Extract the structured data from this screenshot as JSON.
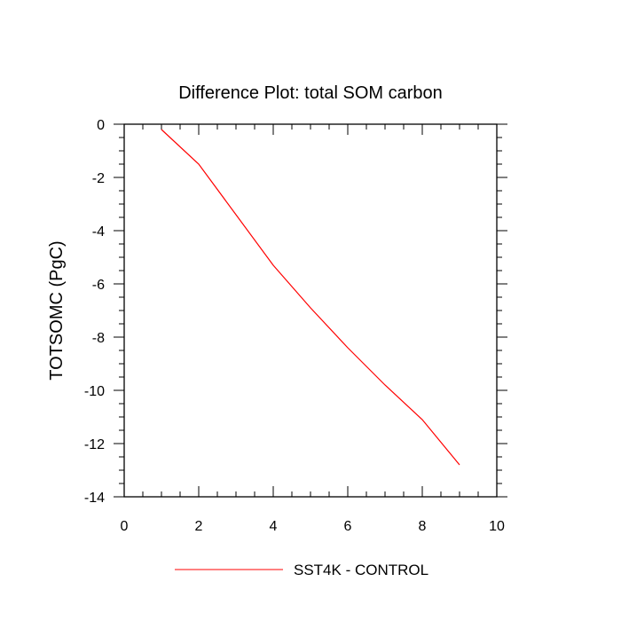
{
  "chart_data": {
    "type": "line",
    "title": "Difference Plot: total SOM carbon",
    "xlabel": "",
    "ylabel": "TOTSOMC  (PgC)",
    "xlim": [
      0,
      10
    ],
    "ylim": [
      -14,
      0
    ],
    "x_ticks": [
      0,
      2,
      4,
      6,
      8,
      10
    ],
    "y_ticks": [
      0,
      -2,
      -4,
      -6,
      -8,
      -10,
      -12,
      -14
    ],
    "grid": false,
    "legend_position": "bottom",
    "series": [
      {
        "name": "SST4K - CONTROL",
        "color": "#ff0000",
        "x": [
          1,
          2,
          3,
          4,
          5,
          6,
          7,
          8,
          9
        ],
        "y": [
          -0.2,
          -1.5,
          -3.4,
          -5.3,
          -6.9,
          -8.4,
          -9.8,
          -11.1,
          -12.8
        ]
      }
    ]
  }
}
